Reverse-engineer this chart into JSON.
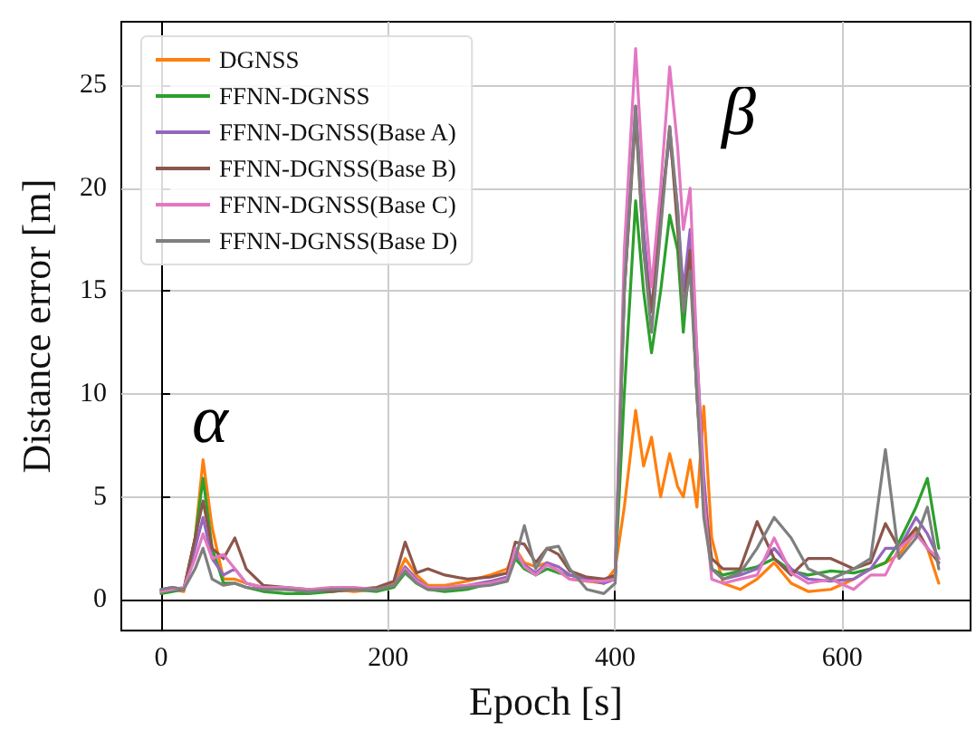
{
  "chart_data": {
    "type": "line",
    "xlabel": "Epoch [s]",
    "ylabel": "Distance error [m]",
    "x": [
      0,
      10,
      20,
      30,
      37,
      45,
      55,
      65,
      75,
      90,
      110,
      130,
      150,
      170,
      190,
      205,
      215,
      225,
      235,
      250,
      270,
      290,
      305,
      312,
      320,
      330,
      340,
      350,
      360,
      375,
      390,
      400,
      408,
      418,
      425,
      432,
      440,
      448,
      455,
      460,
      466,
      472,
      478,
      485,
      495,
      510,
      525,
      540,
      555,
      570,
      590,
      610,
      625,
      638,
      650,
      665,
      675,
      685
    ],
    "series": [
      {
        "name": "DGNSS",
        "color": "#ff7f0e",
        "values": [
          0.4,
          0.5,
          0.4,
          3,
          6.8,
          3.5,
          1,
          1,
          0.8,
          0.6,
          0.5,
          0.4,
          0.5,
          0.4,
          0.5,
          0.8,
          2,
          1.2,
          0.7,
          0.7,
          0.9,
          1.2,
          1.5,
          2.5,
          1.8,
          1.6,
          1.8,
          1.4,
          1,
          0.9,
          0.8,
          1.5,
          4.5,
          9.2,
          6.5,
          7.9,
          5,
          7.1,
          5.5,
          5,
          6.8,
          4.5,
          9.4,
          3,
          0.8,
          0.5,
          1,
          1.8,
          0.8,
          0.4,
          0.5,
          1,
          1.5,
          1.8,
          2.2,
          3.3,
          2.5,
          0.8
        ]
      },
      {
        "name": "FFNN-DGNSS",
        "color": "#2ca02c",
        "values": [
          0.3,
          0.4,
          0.5,
          3,
          5.9,
          2.5,
          0.8,
          0.8,
          0.6,
          0.4,
          0.3,
          0.3,
          0.4,
          0.5,
          0.4,
          0.6,
          1.3,
          0.8,
          0.5,
          0.4,
          0.5,
          0.8,
          1,
          2,
          1.5,
          1.2,
          1.5,
          1.3,
          1.2,
          1,
          0.8,
          1.2,
          10,
          19.4,
          15,
          12,
          15,
          18.7,
          17,
          13,
          17,
          10,
          5,
          1.5,
          1.2,
          1.4,
          1.6,
          2,
          1.4,
          1.2,
          1.4,
          1.3,
          1.5,
          1.8,
          2.8,
          4.5,
          5.9,
          2.5
        ]
      },
      {
        "name": "FFNN-DGNSS(Base A)",
        "color": "#9467bd",
        "values": [
          0.4,
          0.5,
          0.5,
          2.5,
          4,
          2,
          1.2,
          1.5,
          0.8,
          0.6,
          0.5,
          0.4,
          0.5,
          0.5,
          0.5,
          0.7,
          1.6,
          1,
          0.6,
          0.6,
          0.7,
          0.9,
          1.1,
          2.2,
          1.7,
          1.3,
          1.8,
          1.6,
          1.2,
          1,
          0.8,
          1,
          15,
          24,
          18,
          14,
          19,
          22.5,
          19,
          15,
          18,
          12,
          6,
          1.5,
          1,
          1.2,
          1.5,
          2.5,
          1.5,
          1,
          0.9,
          1,
          1.5,
          2.5,
          2.5,
          4,
          3.2,
          2
        ]
      },
      {
        "name": "FFNN-DGNSS(Base B)",
        "color": "#8c564b",
        "values": [
          0.5,
          0.6,
          0.5,
          3,
          4.8,
          2.5,
          2,
          3,
          1.5,
          0.7,
          0.6,
          0.5,
          0.4,
          0.5,
          0.6,
          0.9,
          2.8,
          1.3,
          1.5,
          1.2,
          1,
          1.1,
          1.3,
          2.8,
          2.7,
          1.8,
          2.5,
          2.2,
          1.4,
          1.1,
          1,
          1.2,
          15,
          23.5,
          17,
          14,
          18.5,
          23,
          18,
          14,
          17,
          10,
          5,
          2,
          1.5,
          1.5,
          3.8,
          2,
          1.2,
          2,
          2,
          1.5,
          1.8,
          3.7,
          2.5,
          3.5,
          2.5,
          1.8
        ]
      },
      {
        "name": "FFNN-DGNSS(Base C)",
        "color": "#e377c2",
        "values": [
          0.4,
          0.5,
          0.6,
          2,
          3.2,
          2,
          2.2,
          1.5,
          0.8,
          0.6,
          0.6,
          0.5,
          0.6,
          0.6,
          0.5,
          0.7,
          1.5,
          0.9,
          0.6,
          0.6,
          0.7,
          0.8,
          1,
          2.5,
          1.6,
          1.2,
          1.7,
          1.4,
          1,
          0.9,
          0.9,
          1,
          17,
          26.8,
          20,
          15.2,
          20,
          25.9,
          22,
          18,
          20,
          12,
          5,
          1,
          0.8,
          1,
          1.2,
          3,
          1.3,
          0.8,
          1,
          0.5,
          1.2,
          1.2,
          2.5,
          3.2,
          2.5,
          2
        ]
      },
      {
        "name": "FFNN-DGNSS(Base D)",
        "color": "#7f7f7f",
        "values": [
          0.5,
          0.6,
          0.5,
          1.5,
          2.5,
          1,
          0.7,
          0.8,
          0.6,
          0.5,
          0.5,
          0.4,
          0.5,
          0.5,
          0.5,
          0.7,
          1.4,
          0.8,
          0.5,
          0.5,
          0.6,
          0.7,
          0.9,
          2,
          3.6,
          1.5,
          2.5,
          2.6,
          1.5,
          0.5,
          0.3,
          0.8,
          15,
          24,
          17,
          13,
          18,
          23,
          19,
          14,
          16,
          10,
          4,
          1.5,
          1,
          1.3,
          2.5,
          4,
          3,
          1.5,
          1,
          1.5,
          2,
          7.3,
          2,
          3,
          4.5,
          1.5
        ]
      }
    ],
    "xlim": [
      -35,
      713
    ],
    "ylim": [
      -1.5,
      28.1
    ],
    "xticks": [
      0,
      200,
      400,
      600
    ],
    "yticks": [
      0,
      5,
      10,
      15,
      20,
      25
    ],
    "grid": true,
    "legend": "top left",
    "marker": "none",
    "line_style": "solid",
    "annotations": [
      "α",
      "β"
    ]
  }
}
